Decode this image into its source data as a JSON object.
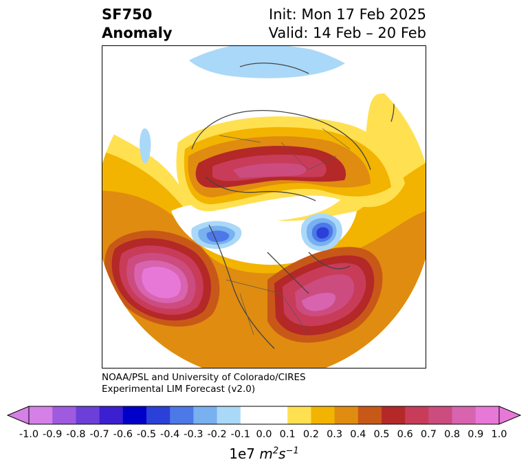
{
  "title": {
    "variable": "SF750",
    "subtitle": "Anomaly",
    "init": "Init: Mon 17 Feb 2025",
    "valid": "Valid: 14 Feb – 20 Feb"
  },
  "credit": {
    "line1": "NOAA/PSL and University of Colorado/CIRES",
    "line2": "Experimental LIM Forecast (v2.0)"
  },
  "colorbar": {
    "ticks": [
      "-1.0",
      "-0.9",
      "-0.8",
      "-0.7",
      "-0.6",
      "-0.5",
      "-0.4",
      "-0.3",
      "-0.2",
      "-0.1",
      "0.0",
      "0.1",
      "0.2",
      "0.3",
      "0.4",
      "0.5",
      "0.6",
      "0.7",
      "0.8",
      "0.9",
      "1.0"
    ],
    "colors": [
      "#d580e6",
      "#a05ae0",
      "#6b3fd8",
      "#3b1fd0",
      "#0000c8",
      "#2a40d8",
      "#4d78e8",
      "#78b0f0",
      "#aad8f8",
      "#ffffff",
      "#ffffff",
      "#ffe050",
      "#f2b400",
      "#e08c10",
      "#c85818",
      "#b42828",
      "#c83c5a",
      "#cc4c80",
      "#d864b0",
      "#e878d8"
    ],
    "unit_base": "1e7 ",
    "unit_m": "m",
    "unit_m_exp": "2",
    "unit_s": "s",
    "unit_s_exp": "−1",
    "extend": "both"
  }
}
